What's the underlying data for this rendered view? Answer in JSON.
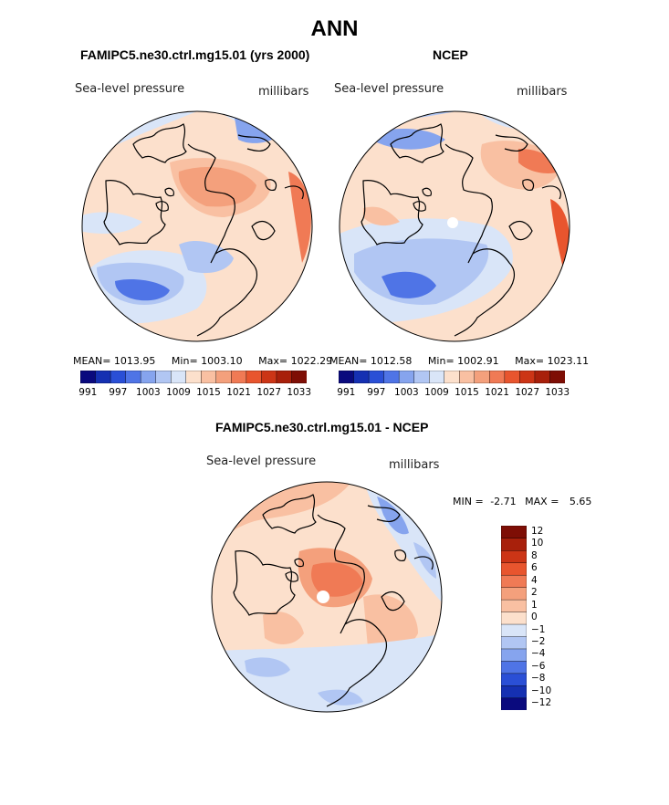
{
  "title": "ANN",
  "chart_data": [
    {
      "type": "heatmap",
      "projection": "north polar stereographic",
      "title": "FAMIPC5.ne30.ctrl.mg15.01 (yrs 2000)",
      "variable": "Sea-level pressure",
      "units": "millibars",
      "stats": {
        "mean": "1013.95",
        "min": "1003.10",
        "max": "1022.29"
      },
      "colorbar": {
        "orientation": "horizontal",
        "levels": [
          991,
          994,
          997,
          1000,
          1003,
          1006,
          1009,
          1012,
          1015,
          1018,
          1021,
          1024,
          1027,
          1030,
          1033
        ],
        "tick_labels": [
          "991",
          "997",
          "1003",
          "1009",
          "1015",
          "1021",
          "1027",
          "1033"
        ]
      }
    },
    {
      "type": "heatmap",
      "projection": "north polar stereographic",
      "title": "NCEP",
      "variable": "Sea-level pressure",
      "units": "millibars",
      "stats": {
        "mean": "1012.58",
        "min": "1002.91",
        "max": "1023.11"
      },
      "colorbar": {
        "orientation": "horizontal",
        "levels": [
          991,
          994,
          997,
          1000,
          1003,
          1006,
          1009,
          1012,
          1015,
          1018,
          1021,
          1024,
          1027,
          1030,
          1033
        ],
        "tick_labels": [
          "991",
          "997",
          "1003",
          "1009",
          "1015",
          "1021",
          "1027",
          "1033"
        ]
      }
    },
    {
      "type": "heatmap",
      "projection": "north polar stereographic",
      "title": "FAMIPC5.ne30.ctrl.mg15.01 - NCEP",
      "variable": "Sea-level pressure",
      "units": "millibars",
      "stats": {
        "min": "-2.71",
        "max": "5.65"
      },
      "colorbar": {
        "orientation": "vertical",
        "levels": [
          -12,
          -10,
          -8,
          -6,
          -4,
          -2,
          -1,
          0,
          1,
          2,
          4,
          6,
          8,
          10,
          12
        ],
        "tick_labels": [
          "12",
          "10",
          "8",
          "6",
          "4",
          "2",
          "1",
          "0",
          "−1",
          "−2",
          "−4",
          "−6",
          "−8",
          "−10",
          "−12"
        ]
      }
    }
  ],
  "labels": {
    "mean": "MEAN=",
    "min": "Min=",
    "max": "Max=",
    "diff_min": "MIN =",
    "diff_max": "MAX ="
  },
  "colors": {
    "ramp": [
      "#0a0a7e",
      "#1530b2",
      "#2a4fd6",
      "#4f74e6",
      "#86a4ee",
      "#b1c6f3",
      "#d9e5f8",
      "#fce0cc",
      "#f9c0a2",
      "#f4a07c",
      "#f07a55",
      "#e8552e",
      "#cc3516",
      "#a8200b",
      "#7e0e05"
    ],
    "land": "#000000",
    "background": "#ffffff"
  }
}
